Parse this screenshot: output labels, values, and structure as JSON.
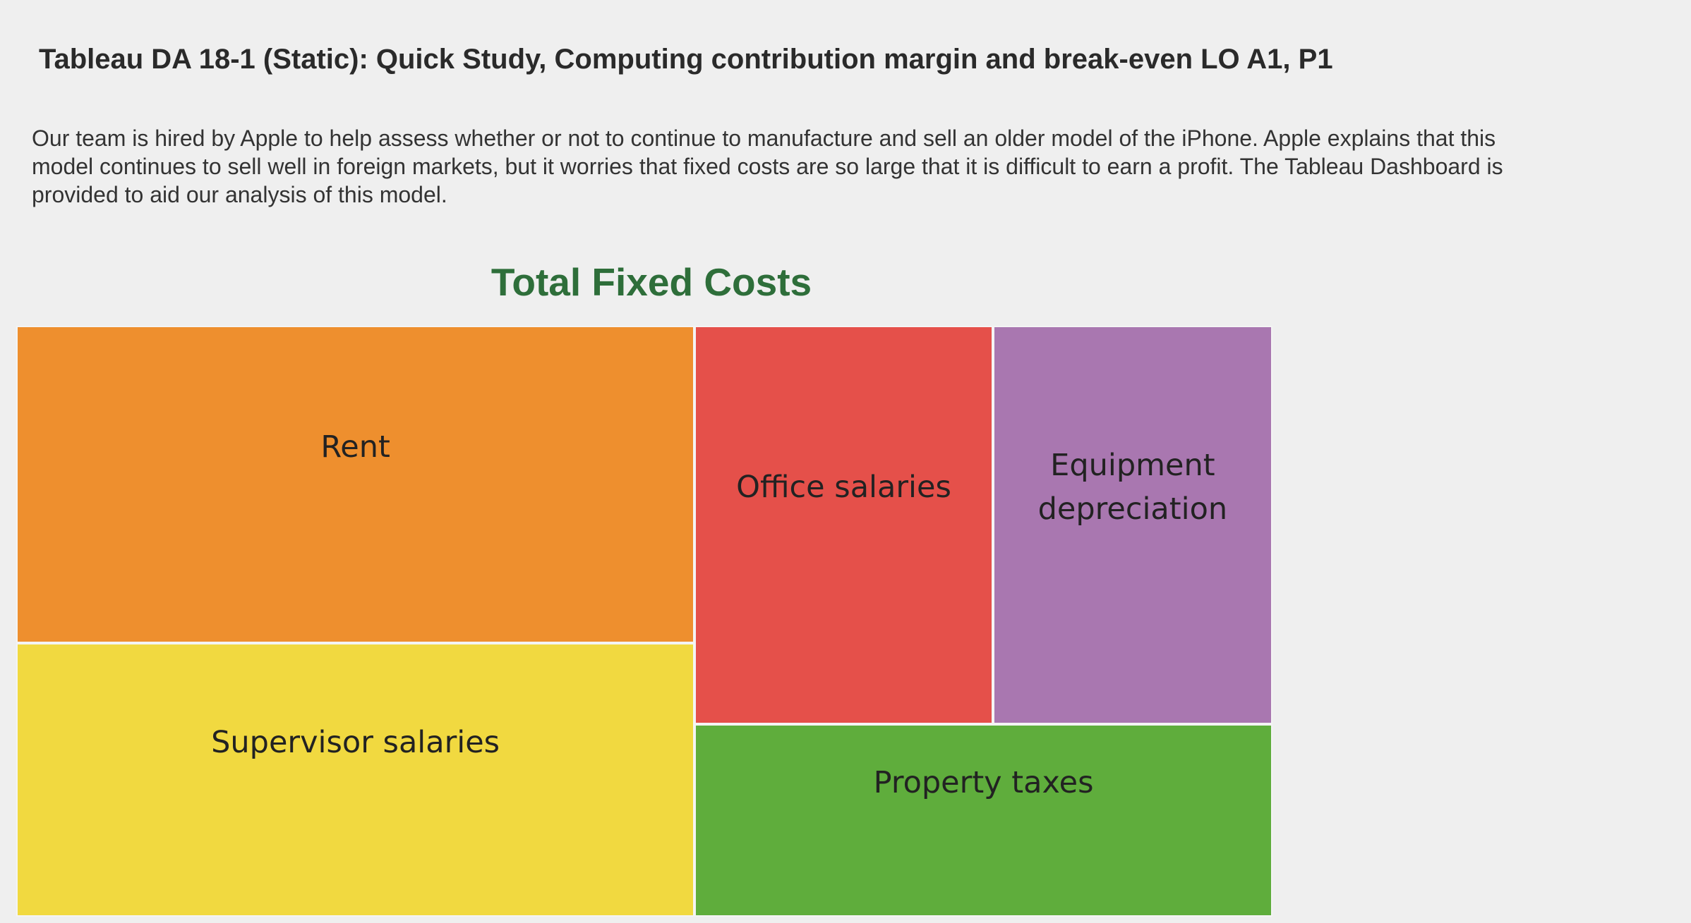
{
  "header": {
    "title": "Tableau DA 18-1 (Static): Quick Study, Computing contribution margin and break-even LO A1, P1",
    "description": "Our team is hired by Apple to help assess whether or not to continue to manufacture and sell an older model of the iPhone. Apple explains that this model continues to sell well in foreign markets, but it worries that fixed costs are so large that it is difficult to earn a profit. The Tableau Dashboard is provided to aid our analysis of this model."
  },
  "chart_data": {
    "type": "treemap",
    "title": "Total Fixed Costs",
    "categories": [
      "Rent",
      "Supervisor salaries",
      "Office salaries",
      "Equipment depreciation",
      "Property taxes"
    ],
    "values": [
      29,
      25,
      16,
      15,
      15
    ],
    "colors": [
      "#ee8f2e",
      "#f1d940",
      "#e5504a",
      "#a977b0",
      "#5fad3c"
    ]
  }
}
